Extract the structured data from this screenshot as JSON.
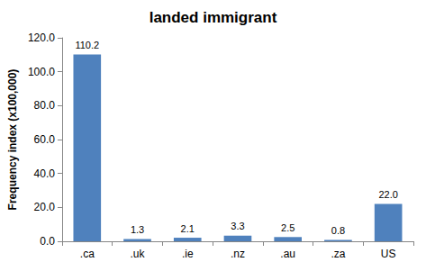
{
  "chart_data": {
    "type": "bar",
    "title": "landed immigrant",
    "y_label": "Frequency index (x100,000)",
    "categories": [
      ".ca",
      ".uk",
      ".ie",
      ".nz",
      ".au",
      ".za",
      "US"
    ],
    "values": [
      110.2,
      1.3,
      2.1,
      3.3,
      2.5,
      0.8,
      22.0
    ],
    "value_labels": [
      "110.2",
      "1.3",
      "2.1",
      "3.3",
      "2.5",
      "0.8",
      "22.0"
    ],
    "color": "#4f81bd",
    "ylim": [
      0,
      120
    ],
    "yticks": [
      {
        "value": 0,
        "label": "0.0"
      },
      {
        "value": 20,
        "label": "20.0"
      },
      {
        "value": 40,
        "label": "40.0"
      },
      {
        "value": 60,
        "label": "60.0"
      },
      {
        "value": 80,
        "label": "80.0"
      },
      {
        "value": 100,
        "label": "100.0"
      },
      {
        "value": 120,
        "label": "120.0"
      }
    ],
    "grid": false,
    "data_labels": true
  }
}
